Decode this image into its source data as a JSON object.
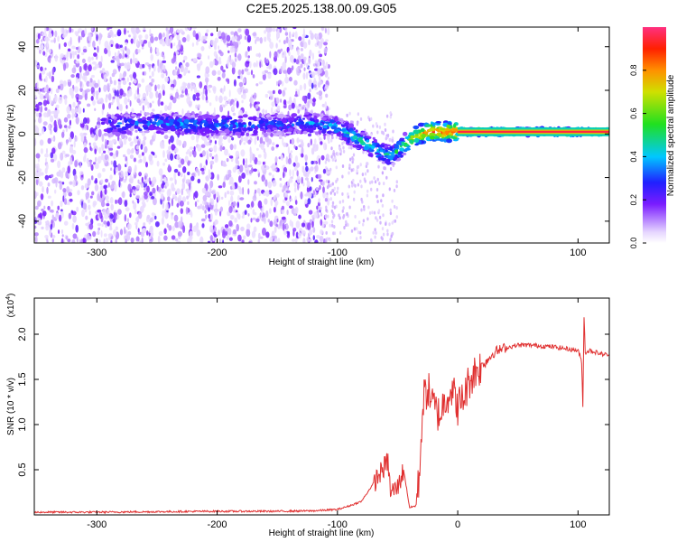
{
  "title": "C2E5.2025.138.00.09.G05",
  "colors": {
    "snr_line": "#e03030",
    "background": "#ffffff",
    "axis": "#000000"
  },
  "chart_data": [
    {
      "type": "heatmap",
      "name": "spectrogram",
      "xlabel": "Height of straight line (km)",
      "ylabel": "Frequency (Hz)",
      "xlim": [
        -352,
        126
      ],
      "ylim": [
        -50,
        49
      ],
      "xticks": [
        -300,
        -200,
        -100,
        0,
        100
      ],
      "yticks": [
        -40,
        -20,
        0,
        20,
        40
      ],
      "colorbar": {
        "label": "Normalized spectral amplitude",
        "range": [
          0.0,
          1.0
        ],
        "ticks": [
          "0.0",
          "0.2",
          "0.4",
          "0.6",
          "0.8"
        ],
        "tick_values": [
          0.0,
          0.2,
          0.4,
          0.6,
          0.8
        ]
      },
      "ridge": {
        "description_points_x": [
          -290,
          -250,
          -200,
          -150,
          -120,
          -100,
          -80,
          -65,
          -55,
          -45,
          -35,
          -25,
          -15,
          0,
          10,
          100,
          126
        ],
        "description_points_y": [
          4,
          5,
          4,
          4,
          5,
          3,
          -3,
          -8,
          -10,
          -5,
          -1,
          1,
          1,
          1,
          1,
          1,
          1
        ],
        "description_points_amp": [
          0.3,
          0.35,
          0.35,
          0.3,
          0.35,
          0.4,
          0.45,
          0.4,
          0.45,
          0.55,
          0.7,
          0.85,
          0.9,
          0.9,
          0.95,
          0.95,
          0.95
        ]
      }
    },
    {
      "type": "line",
      "name": "snr",
      "xlabel": "Height of straight line (km)",
      "ylabel": "SNR (10 * v/v)",
      "y_multiplier": "(x10",
      "y_multiplier_exp": "4",
      "y_multiplier_close": ")",
      "xlim": [
        -352,
        126
      ],
      "ylim": [
        0,
        2.4
      ],
      "xticks": [
        -300,
        -200,
        -100,
        0,
        100
      ],
      "yticks": [
        0.5,
        1.0,
        1.5,
        2.0
      ],
      "ytick_labels": [
        "0.5",
        "1.0",
        "1.5",
        "2.0"
      ],
      "series": [
        {
          "name": "SNR",
          "x": [
            -352,
            -300,
            -250,
            -200,
            -150,
            -120,
            -100,
            -90,
            -80,
            -75,
            -70,
            -65,
            -60,
            -58,
            -56,
            -50,
            -45,
            -40,
            -35,
            -32,
            -30,
            -28,
            -25,
            -20,
            -15,
            -10,
            -5,
            0,
            5,
            10,
            15,
            20,
            25,
            30,
            40,
            50,
            60,
            70,
            80,
            90,
            100,
            103,
            104,
            105,
            106,
            110,
            120,
            126
          ],
          "y": [
            0.03,
            0.03,
            0.035,
            0.04,
            0.04,
            0.045,
            0.06,
            0.1,
            0.15,
            0.25,
            0.35,
            0.45,
            0.55,
            0.6,
            0.25,
            0.3,
            0.5,
            0.08,
            0.1,
            0.4,
            1.0,
            1.3,
            1.4,
            1.2,
            1.1,
            1.3,
            1.4,
            1.2,
            1.3,
            1.5,
            1.6,
            1.65,
            1.72,
            1.8,
            1.85,
            1.88,
            1.88,
            1.87,
            1.86,
            1.84,
            1.82,
            1.7,
            1.2,
            2.2,
            1.8,
            1.82,
            1.78,
            1.77
          ]
        }
      ]
    }
  ]
}
